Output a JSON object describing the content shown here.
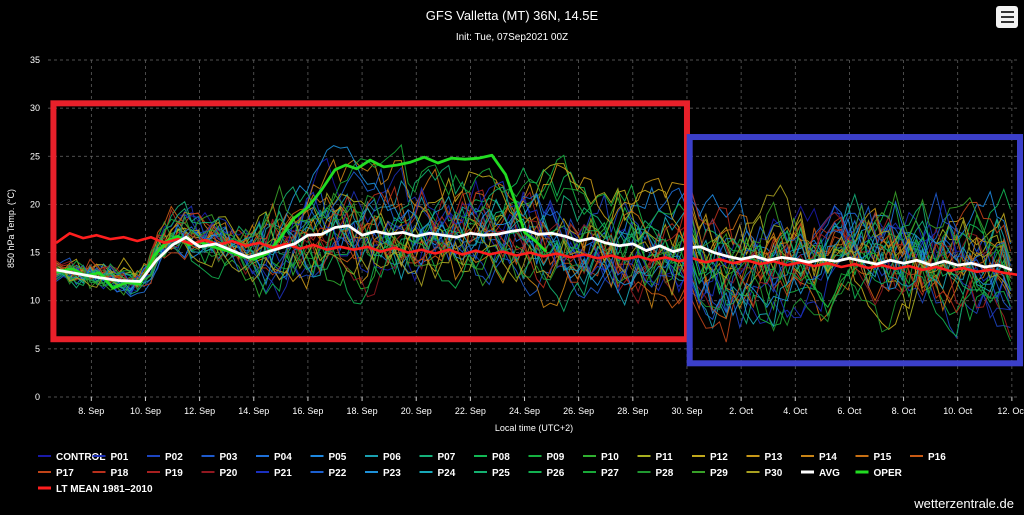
{
  "header": {
    "title": "GFS Valletta (MT) 36N, 14.5E",
    "subtitle": "Init: Tue, 07Sep2021 00Z",
    "menu_icon": "hamburger-menu-icon"
  },
  "credit": "wetterzentrale.de",
  "chart_data": {
    "type": "line",
    "title": "GFS Valletta (MT) 36N, 14.5E",
    "subtitle": "Init: Tue, 07Sep2021 00Z",
    "xlabel": "Local time (UTC+2)",
    "ylabel": "850 hPa Temp. (°C)",
    "ylim": [
      0,
      35
    ],
    "yticks": [
      0,
      5,
      10,
      15,
      20,
      25,
      30,
      35
    ],
    "xlim": [
      6.4,
      42.3
    ],
    "xticks": [
      {
        "x": 8,
        "label": "8. Sep"
      },
      {
        "x": 10,
        "label": "10. Sep"
      },
      {
        "x": 12,
        "label": "12. Sep"
      },
      {
        "x": 14,
        "label": "14. Sep"
      },
      {
        "x": 16,
        "label": "16. Sep"
      },
      {
        "x": 18,
        "label": "18. Sep"
      },
      {
        "x": 20,
        "label": "20. Sep"
      },
      {
        "x": 22,
        "label": "22. Sep"
      },
      {
        "x": 24,
        "label": "24. Sep"
      },
      {
        "x": 26,
        "label": "26. Sep"
      },
      {
        "x": 28,
        "label": "28. Sep"
      },
      {
        "x": 30,
        "label": "30. Sep"
      },
      {
        "x": 32,
        "label": "2. Oct"
      },
      {
        "x": 34,
        "label": "4. Oct"
      },
      {
        "x": 36,
        "label": "6. Oct"
      },
      {
        "x": 38,
        "label": "8. Oct"
      },
      {
        "x": 40,
        "label": "10. Oct"
      },
      {
        "x": 42,
        "label": "12. Oct"
      }
    ],
    "grid": "dashed",
    "background": "#000000",
    "highlights": [
      {
        "color": "#e8202a",
        "x": [
          6.6,
          30.0
        ],
        "y": [
          6,
          30.5
        ]
      },
      {
        "color": "#3b3fc9",
        "x": [
          30.1,
          42.3
        ],
        "y": [
          3.5,
          27
        ]
      }
    ],
    "legend_position": "bottom",
    "members": [
      {
        "name": "CONTROL",
        "color": "#1a1aa8"
      },
      {
        "name": "P01",
        "color": "#1c2fb4"
      },
      {
        "name": "P02",
        "color": "#1d45c0"
      },
      {
        "name": "P03",
        "color": "#1e5acc"
      },
      {
        "name": "P04",
        "color": "#1f70d8"
      },
      {
        "name": "P05",
        "color": "#1e88e0"
      },
      {
        "name": "P06",
        "color": "#1aa0b0"
      },
      {
        "name": "P07",
        "color": "#15b07a"
      },
      {
        "name": "P08",
        "color": "#12b855"
      },
      {
        "name": "P09",
        "color": "#15b040"
      },
      {
        "name": "P10",
        "color": "#30b030"
      },
      {
        "name": "P11",
        "color": "#a8b020"
      },
      {
        "name": "P12",
        "color": "#c0a81c"
      },
      {
        "name": "P13",
        "color": "#c89818"
      },
      {
        "name": "P14",
        "color": "#c88416"
      },
      {
        "name": "P15",
        "color": "#c87014"
      },
      {
        "name": "P16",
        "color": "#c85a14"
      },
      {
        "name": "P17",
        "color": "#c04418"
      },
      {
        "name": "P18",
        "color": "#b8301c"
      },
      {
        "name": "P19",
        "color": "#a82020"
      },
      {
        "name": "P20",
        "color": "#901820"
      },
      {
        "name": "P21",
        "color": "#1a30c0"
      },
      {
        "name": "P22",
        "color": "#1c60d0"
      },
      {
        "name": "P23",
        "color": "#1e90d8"
      },
      {
        "name": "P24",
        "color": "#18a8b8"
      },
      {
        "name": "P25",
        "color": "#14b070"
      },
      {
        "name": "P26",
        "color": "#12b050"
      },
      {
        "name": "P27",
        "color": "#18a838"
      },
      {
        "name": "P28",
        "color": "#209830"
      },
      {
        "name": "P29",
        "color": "#38a028"
      },
      {
        "name": "P30",
        "color": "#a8a020"
      }
    ],
    "avg": {
      "name": "AVG",
      "color": "#ffffff",
      "x": [
        6.7,
        7.5,
        8.3,
        9.0,
        9.8,
        10.4,
        11.0,
        11.5,
        12.0,
        12.6,
        13.2,
        13.8,
        14.3,
        14.9,
        15.5,
        16.0,
        16.5,
        17.0,
        17.5,
        18.0,
        18.5,
        19.0,
        19.5,
        20.0,
        20.5,
        21.0,
        21.5,
        22.0,
        22.5,
        23.0,
        23.5,
        24.0,
        24.5,
        25.0,
        25.5,
        26.0,
        26.5,
        27.0,
        27.5,
        28.0,
        28.5,
        29.0,
        29.5,
        30.0,
        30.5,
        31.0,
        31.5,
        32.0,
        32.5,
        33.0,
        33.5,
        34.0,
        34.5,
        35.0,
        35.5,
        36.0,
        36.5,
        37.0,
        37.5,
        38.0,
        38.5,
        39.0,
        39.5,
        40.0,
        40.5,
        41.0,
        41.5,
        42.0
      ],
      "y": [
        13.2,
        12.8,
        12.4,
        12.1,
        12.0,
        14.2,
        15.8,
        16.6,
        15.6,
        15.9,
        15.2,
        14.5,
        14.9,
        15.4,
        15.9,
        16.8,
        16.9,
        17.6,
        17.8,
        16.8,
        17.2,
        16.9,
        17.1,
        16.7,
        17.0,
        16.8,
        16.6,
        17.0,
        16.8,
        16.9,
        17.2,
        17.4,
        16.9,
        17.0,
        16.7,
        16.2,
        16.5,
        16.0,
        15.7,
        15.9,
        15.2,
        15.7,
        15.1,
        15.5,
        15.6,
        15.0,
        14.6,
        14.3,
        14.6,
        14.2,
        14.5,
        14.3,
        14.0,
        14.3,
        14.1,
        14.4,
        14.1,
        13.8,
        14.2,
        13.9,
        14.2,
        13.7,
        14.1,
        13.7,
        13.9,
        13.5,
        13.7,
        13.2
      ]
    },
    "oper": {
      "name": "OPER",
      "color": "#22dd22",
      "x": [
        6.7,
        7.3,
        7.8,
        8.3,
        8.8,
        9.3,
        9.8,
        10.3,
        10.8,
        11.2,
        11.6,
        12.0,
        12.5,
        13.0,
        13.5,
        14.0,
        14.5,
        15.0,
        15.5,
        16.0,
        16.5,
        17.0,
        17.4,
        17.8,
        18.3,
        18.8,
        19.3,
        19.8,
        20.3,
        20.8,
        21.3,
        21.8,
        22.3,
        22.8,
        23.3,
        23.7,
        24.0,
        24.4,
        24.8
      ],
      "y": [
        13.0,
        13.3,
        12.6,
        12.9,
        11.3,
        11.9,
        11.7,
        14.6,
        16.2,
        16.7,
        15.8,
        16.1,
        15.6,
        15.2,
        14.7,
        14.3,
        14.9,
        16.6,
        18.6,
        19.7,
        21.5,
        23.6,
        24.1,
        23.7,
        24.6,
        23.9,
        24.1,
        24.4,
        24.9,
        24.3,
        24.8,
        24.7,
        24.8,
        25.1,
        23.1,
        19.9,
        17.1,
        16.2,
        15.1
      ]
    },
    "lt_mean": {
      "name": "LT MEAN 1981-2010",
      "color": "#ff1e1e",
      "x": [
        6.7,
        7.2,
        7.7,
        8.2,
        8.7,
        9.2,
        9.7,
        10.2,
        10.7,
        11.2,
        11.7,
        12.2,
        12.7,
        13.2,
        13.7,
        14.2,
        14.7,
        15.2,
        15.7,
        16.2,
        16.7,
        17.2,
        17.7,
        18.2,
        18.7,
        19.2,
        19.7,
        20.2,
        20.7,
        21.2,
        21.7,
        22.2,
        22.7,
        23.2,
        23.7,
        24.2,
        24.7,
        25.2,
        25.7,
        26.2,
        26.7,
        27.2,
        27.7,
        28.2,
        28.7,
        29.2,
        29.7,
        30.2,
        30.7,
        31.2,
        31.7,
        32.2,
        32.7,
        33.2,
        33.7,
        34.2,
        34.7,
        35.2,
        35.7,
        36.2,
        36.7,
        37.2,
        37.7,
        38.2,
        38.7,
        39.2,
        39.7,
        40.2,
        40.7,
        41.2,
        41.7,
        42.2
      ],
      "y": [
        16.0,
        17.0,
        16.5,
        16.8,
        16.4,
        16.6,
        16.2,
        16.6,
        16.0,
        16.4,
        15.9,
        16.3,
        15.8,
        16.2,
        15.7,
        16.0,
        15.5,
        15.9,
        15.4,
        15.8,
        15.3,
        15.6,
        15.3,
        15.6,
        15.1,
        15.5,
        15.0,
        15.3,
        14.9,
        15.3,
        14.8,
        15.2,
        14.8,
        15.1,
        14.7,
        15.0,
        14.6,
        14.9,
        14.5,
        14.8,
        14.4,
        14.7,
        14.3,
        14.6,
        14.2,
        14.5,
        14.1,
        14.4,
        14.0,
        14.3,
        13.9,
        14.2,
        13.8,
        14.1,
        13.7,
        14.0,
        13.6,
        13.9,
        13.5,
        13.8,
        13.4,
        13.7,
        13.3,
        13.6,
        13.2,
        13.5,
        13.1,
        13.4,
        13.0,
        13.2,
        12.9,
        12.7
      ]
    },
    "legend_entries": [
      "CONTROL",
      "P01",
      "P02",
      "P03",
      "P04",
      "P05",
      "P06",
      "P07",
      "P08",
      "P09",
      "P10",
      "P11",
      "P12",
      "P13",
      "P14",
      "P15",
      "P16",
      "P17",
      "P18",
      "P19",
      "P20",
      "P21",
      "P22",
      "P23",
      "P24",
      "P25",
      "P26",
      "P27",
      "P28",
      "P29",
      "P30",
      "AVG",
      "OPER",
      "LT MEAN 1981–2010"
    ]
  }
}
